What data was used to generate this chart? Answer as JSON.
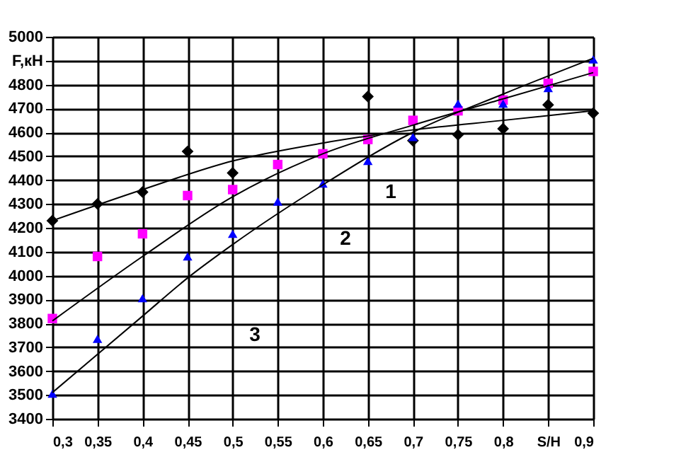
{
  "chart_data": {
    "type": "scatter",
    "x": [
      0.3,
      0.35,
      0.4,
      0.45,
      0.5,
      0.55,
      0.6,
      0.65,
      0.7,
      0.75,
      0.8,
      0.85,
      0.9
    ],
    "series": [
      {
        "color": "#000000",
        "marker": "diamond",
        "values": [
          4230,
          4300,
          4350,
          4520,
          4430,
          null,
          null,
          4750,
          4565,
          4590,
          4615,
          4715,
          4680
        ]
      },
      {
        "color": "#ff00ff",
        "marker": "square",
        "values": [
          3820,
          4080,
          4175,
          4335,
          4360,
          4465,
          4510,
          4570,
          4650,
          4690,
          4735,
          4805,
          4855
        ]
      },
      {
        "color": "#0000ff",
        "marker": "triangle",
        "values": [
          3505,
          3735,
          3905,
          4080,
          4175,
          4310,
          4385,
          4480,
          4580,
          4720,
          4720,
          4785,
          4905
        ]
      },
      {
        "type": "line",
        "color": "#000000",
        "marker": "none",
        "x": [
          0.3,
          0.4,
          0.5,
          0.6,
          0.7,
          0.8,
          0.9
        ],
        "values": [
          4230,
          4360,
          4480,
          4555,
          4610,
          4650,
          4690
        ]
      },
      {
        "type": "line",
        "color": "#000000",
        "marker": "none",
        "x": [
          0.3,
          0.4,
          0.5,
          0.6,
          0.7,
          0.8,
          0.9
        ],
        "values": [
          3810,
          4080,
          4330,
          4510,
          4630,
          4740,
          4850
        ]
      },
      {
        "type": "line",
        "color": "#000000",
        "marker": "none",
        "x": [
          0.3,
          0.4,
          0.45,
          0.5,
          0.6,
          0.7,
          0.8,
          0.9
        ],
        "values": [
          3510,
          3830,
          3990,
          4130,
          4380,
          4600,
          4760,
          4910
        ]
      }
    ],
    "xlim": [
      0.3,
      0.9
    ],
    "xticks": [
      {
        "value": 0.3,
        "label": "0,3"
      },
      {
        "value": 0.35,
        "label": "0,35"
      },
      {
        "value": 0.4,
        "label": "0,4"
      },
      {
        "value": 0.45,
        "label": "0,45"
      },
      {
        "value": 0.5,
        "label": "0,5"
      },
      {
        "value": 0.55,
        "label": "0,55"
      },
      {
        "value": 0.6,
        "label": "0,6"
      },
      {
        "value": 0.65,
        "label": "0,65"
      },
      {
        "value": 0.7,
        "label": "0,7"
      },
      {
        "value": 0.75,
        "label": "0,75"
      },
      {
        "value": 0.8,
        "label": "0,8"
      },
      {
        "value": 0.85,
        "label": "S/H"
      },
      {
        "value": 0.9,
        "label": "0,9"
      }
    ],
    "ylim": [
      3400,
      5000
    ],
    "yticks": [
      3400,
      3500,
      3600,
      3700,
      3800,
      3900,
      4000,
      4100,
      4200,
      4300,
      4400,
      4500,
      4600,
      4700,
      4800,
      {
        "value": 4900,
        "label": "F,кН"
      },
      5000
    ],
    "annotations": [
      "1",
      "2",
      "3"
    ],
    "grid": true
  }
}
